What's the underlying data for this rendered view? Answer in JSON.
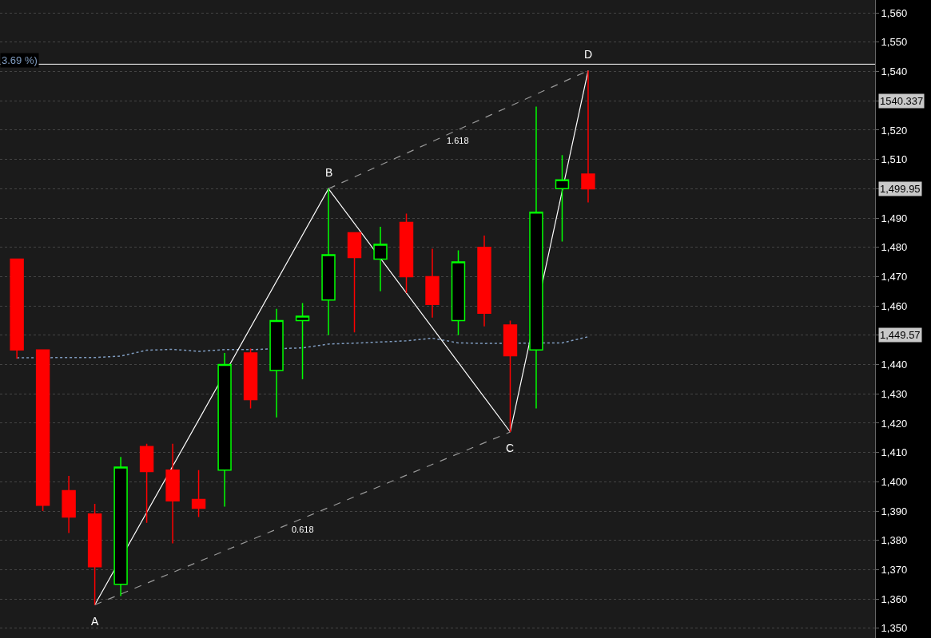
{
  "chart_data": {
    "type": "candlestick",
    "categories": [
      null,
      null,
      null,
      null,
      null,
      null,
      null,
      null,
      null,
      null,
      null,
      null,
      null,
      null,
      null,
      null,
      null,
      null,
      null,
      null,
      null,
      null,
      null
    ],
    "ohlc": [
      [
        1476,
        1476,
        1442,
        1445
      ],
      [
        1445,
        1445,
        1390,
        1392
      ],
      [
        1397,
        1402,
        1382.5,
        1388
      ],
      [
        1389,
        1392.5,
        1358,
        1371
      ],
      [
        1365,
        1408.5,
        1361,
        1405
      ],
      [
        1412,
        1413,
        1386,
        1403.5
      ],
      [
        1404,
        1413,
        1379,
        1393.5
      ],
      [
        1394,
        1404,
        1388,
        1391
      ],
      [
        1404,
        1444,
        1391.5,
        1440
      ],
      [
        1444,
        1445.5,
        1425,
        1428
      ],
      [
        1438,
        1459,
        1422,
        1455
      ],
      [
        1455,
        1461,
        1435,
        1456.5
      ],
      [
        1462,
        1500,
        1450,
        1477.5
      ],
      [
        1485,
        1485,
        1451,
        1476.5
      ],
      [
        1476,
        1487,
        1465,
        1481
      ],
      [
        1488.5,
        1491.5,
        1464.5,
        1470
      ],
      [
        1470,
        1479.5,
        1456,
        1460.5
      ],
      [
        1455,
        1479,
        1450,
        1475
      ],
      [
        1480,
        1484,
        1453,
        1457.5
      ],
      [
        1453.5,
        1455,
        1417,
        1443
      ],
      [
        1445,
        1528,
        1425,
        1492
      ],
      [
        1500,
        1511.5,
        1482,
        1503
      ],
      [
        1505,
        1540.3,
        1495.3,
        1499.95
      ]
    ],
    "colors": [
      "#ff0000",
      "#ff0000",
      "#ff0000",
      "#ff0000",
      "#00ff00",
      "#ff0000",
      "#ff0000",
      "#ff0000",
      "#00ff00",
      "#ff0000",
      "#00ff00",
      "#00ff00",
      "#00ff00",
      "#ff0000",
      "#00ff00",
      "#ff0000",
      "#ff0000",
      "#00ff00",
      "#ff0000",
      "#ff0000",
      "#00ff00",
      "#00ff00",
      "#ff0000"
    ],
    "series": [
      {
        "type": "line",
        "color": "#7f9cc0",
        "line_style": "dotted",
        "values": [
          1442.3,
          null,
          1442.4,
          1442.4,
          1442.9,
          1444.9,
          1445.2,
          1444.5,
          1445.1,
          1445.1,
          null,
          1445.7,
          1447.0,
          1447.3,
          1447.7,
          1448.1,
          1449.0,
          1447.4,
          1447.2,
          null,
          null,
          1447.4,
          1449.5
        ]
      },
      {
        "type": "line",
        "color": "#ffffff",
        "line_style": "solid",
        "values": [
          null,
          null,
          null,
          1358,
          null,
          null,
          null,
          null,
          null,
          null,
          null,
          null,
          1500,
          null,
          null,
          null,
          null,
          null,
          null,
          1417,
          null,
          null,
          1540.3
        ],
        "value_labels": [
          null,
          null,
          null,
          "A",
          null,
          null,
          null,
          null,
          null,
          null,
          null,
          null,
          "B",
          null,
          null,
          null,
          null,
          null,
          null,
          "C",
          null,
          null,
          "D"
        ]
      },
      {
        "type": "line",
        "color": "#9a9a9a",
        "line_style": "dashed",
        "values": [
          null,
          null,
          null,
          1358,
          null,
          null,
          null,
          null,
          null,
          null,
          null,
          null,
          null,
          null,
          null,
          null,
          null,
          null,
          null,
          1417,
          null,
          null,
          null
        ]
      },
      {
        "type": "line",
        "color": "#9a9a9a",
        "line_style": "dashed",
        "values": [
          null,
          null,
          null,
          null,
          null,
          null,
          null,
          null,
          null,
          null,
          null,
          null,
          1500,
          null,
          null,
          null,
          null,
          null,
          null,
          null,
          null,
          null,
          1540.3
        ]
      }
    ],
    "annotations": [
      "0.618",
      "1.618",
      "1,449.57",
      "1,499.95",
      "1540.337",
      "3.69 %)"
    ],
    "ref_lines": [
      {
        "axis": "y",
        "value": 1542.5,
        "color": "#ffffff"
      }
    ],
    "ylim": [
      1346.7,
      1564.4
    ],
    "yticks": [
      {
        "value": 1350,
        "label": "1,350"
      },
      {
        "value": 1360,
        "label": "1,360"
      },
      {
        "value": 1370,
        "label": "1,370"
      },
      {
        "value": 1380,
        "label": "1,380"
      },
      {
        "value": 1390,
        "label": "1,390"
      },
      {
        "value": 1400,
        "label": "1,400"
      },
      {
        "value": 1410,
        "label": "1,410"
      },
      {
        "value": 1420,
        "label": "1,420"
      },
      {
        "value": 1430,
        "label": "1,430"
      },
      {
        "value": 1440,
        "label": "1,440"
      },
      {
        "value": 1450,
        "label": null
      },
      {
        "value": 1460,
        "label": "1,460"
      },
      {
        "value": 1470,
        "label": "1,470"
      },
      {
        "value": 1480,
        "label": "1,480"
      },
      {
        "value": 1490,
        "label": "1,490"
      },
      {
        "value": 1500,
        "label": null
      },
      {
        "value": 1510,
        "label": "1,510"
      },
      {
        "value": 1520,
        "label": "1,520"
      },
      {
        "value": 1530,
        "label": null
      },
      {
        "value": 1540,
        "label": "1,540"
      },
      {
        "value": 1550,
        "label": "1,550"
      },
      {
        "value": 1560,
        "label": "1,560"
      }
    ],
    "grid": "y",
    "tick_labels": "y"
  }
}
